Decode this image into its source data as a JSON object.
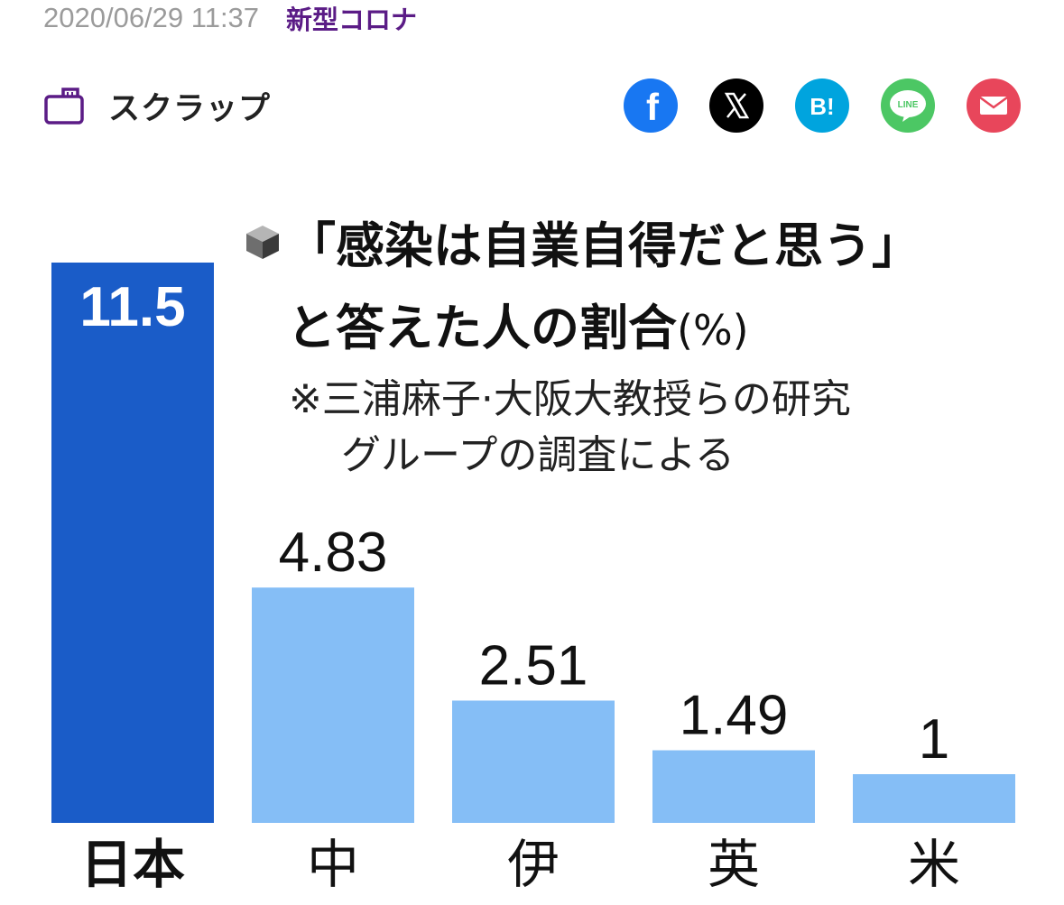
{
  "meta": {
    "datetime": "2020/06/29 11:37",
    "category": "新型コロナ"
  },
  "actions": {
    "scrap_label": "スクラップ",
    "share": [
      {
        "name": "facebook",
        "icon": "facebook-icon",
        "color": "#1877F2"
      },
      {
        "name": "x",
        "icon": "x-icon",
        "color": "#000000"
      },
      {
        "name": "hatena",
        "icon": "hatena-bookmark-icon",
        "label": "B!",
        "color": "#00A4DE"
      },
      {
        "name": "line",
        "icon": "line-icon",
        "label": "LINE",
        "color": "#4CC764"
      },
      {
        "name": "mail",
        "icon": "mail-icon",
        "color": "#E8465B"
      }
    ]
  },
  "chart_data": {
    "type": "bar",
    "title_line1": "「感染は自業自得だと思う」",
    "title_line2": "と答えた人の割合",
    "unit": "(%)",
    "note_line1": "※三浦麻子·大阪大教授らの研究",
    "note_line2": "グループの調査による",
    "categories": [
      "日本",
      "中",
      "伊",
      "英",
      "米"
    ],
    "values": [
      11.5,
      4.83,
      2.51,
      1.49,
      1
    ],
    "value_labels": [
      "11.5",
      "4.83",
      "2.51",
      "1.49",
      "1"
    ],
    "colors": {
      "highlight": "#1A5CC8",
      "default": "#85BEF6"
    },
    "highlight_index": 0
  }
}
